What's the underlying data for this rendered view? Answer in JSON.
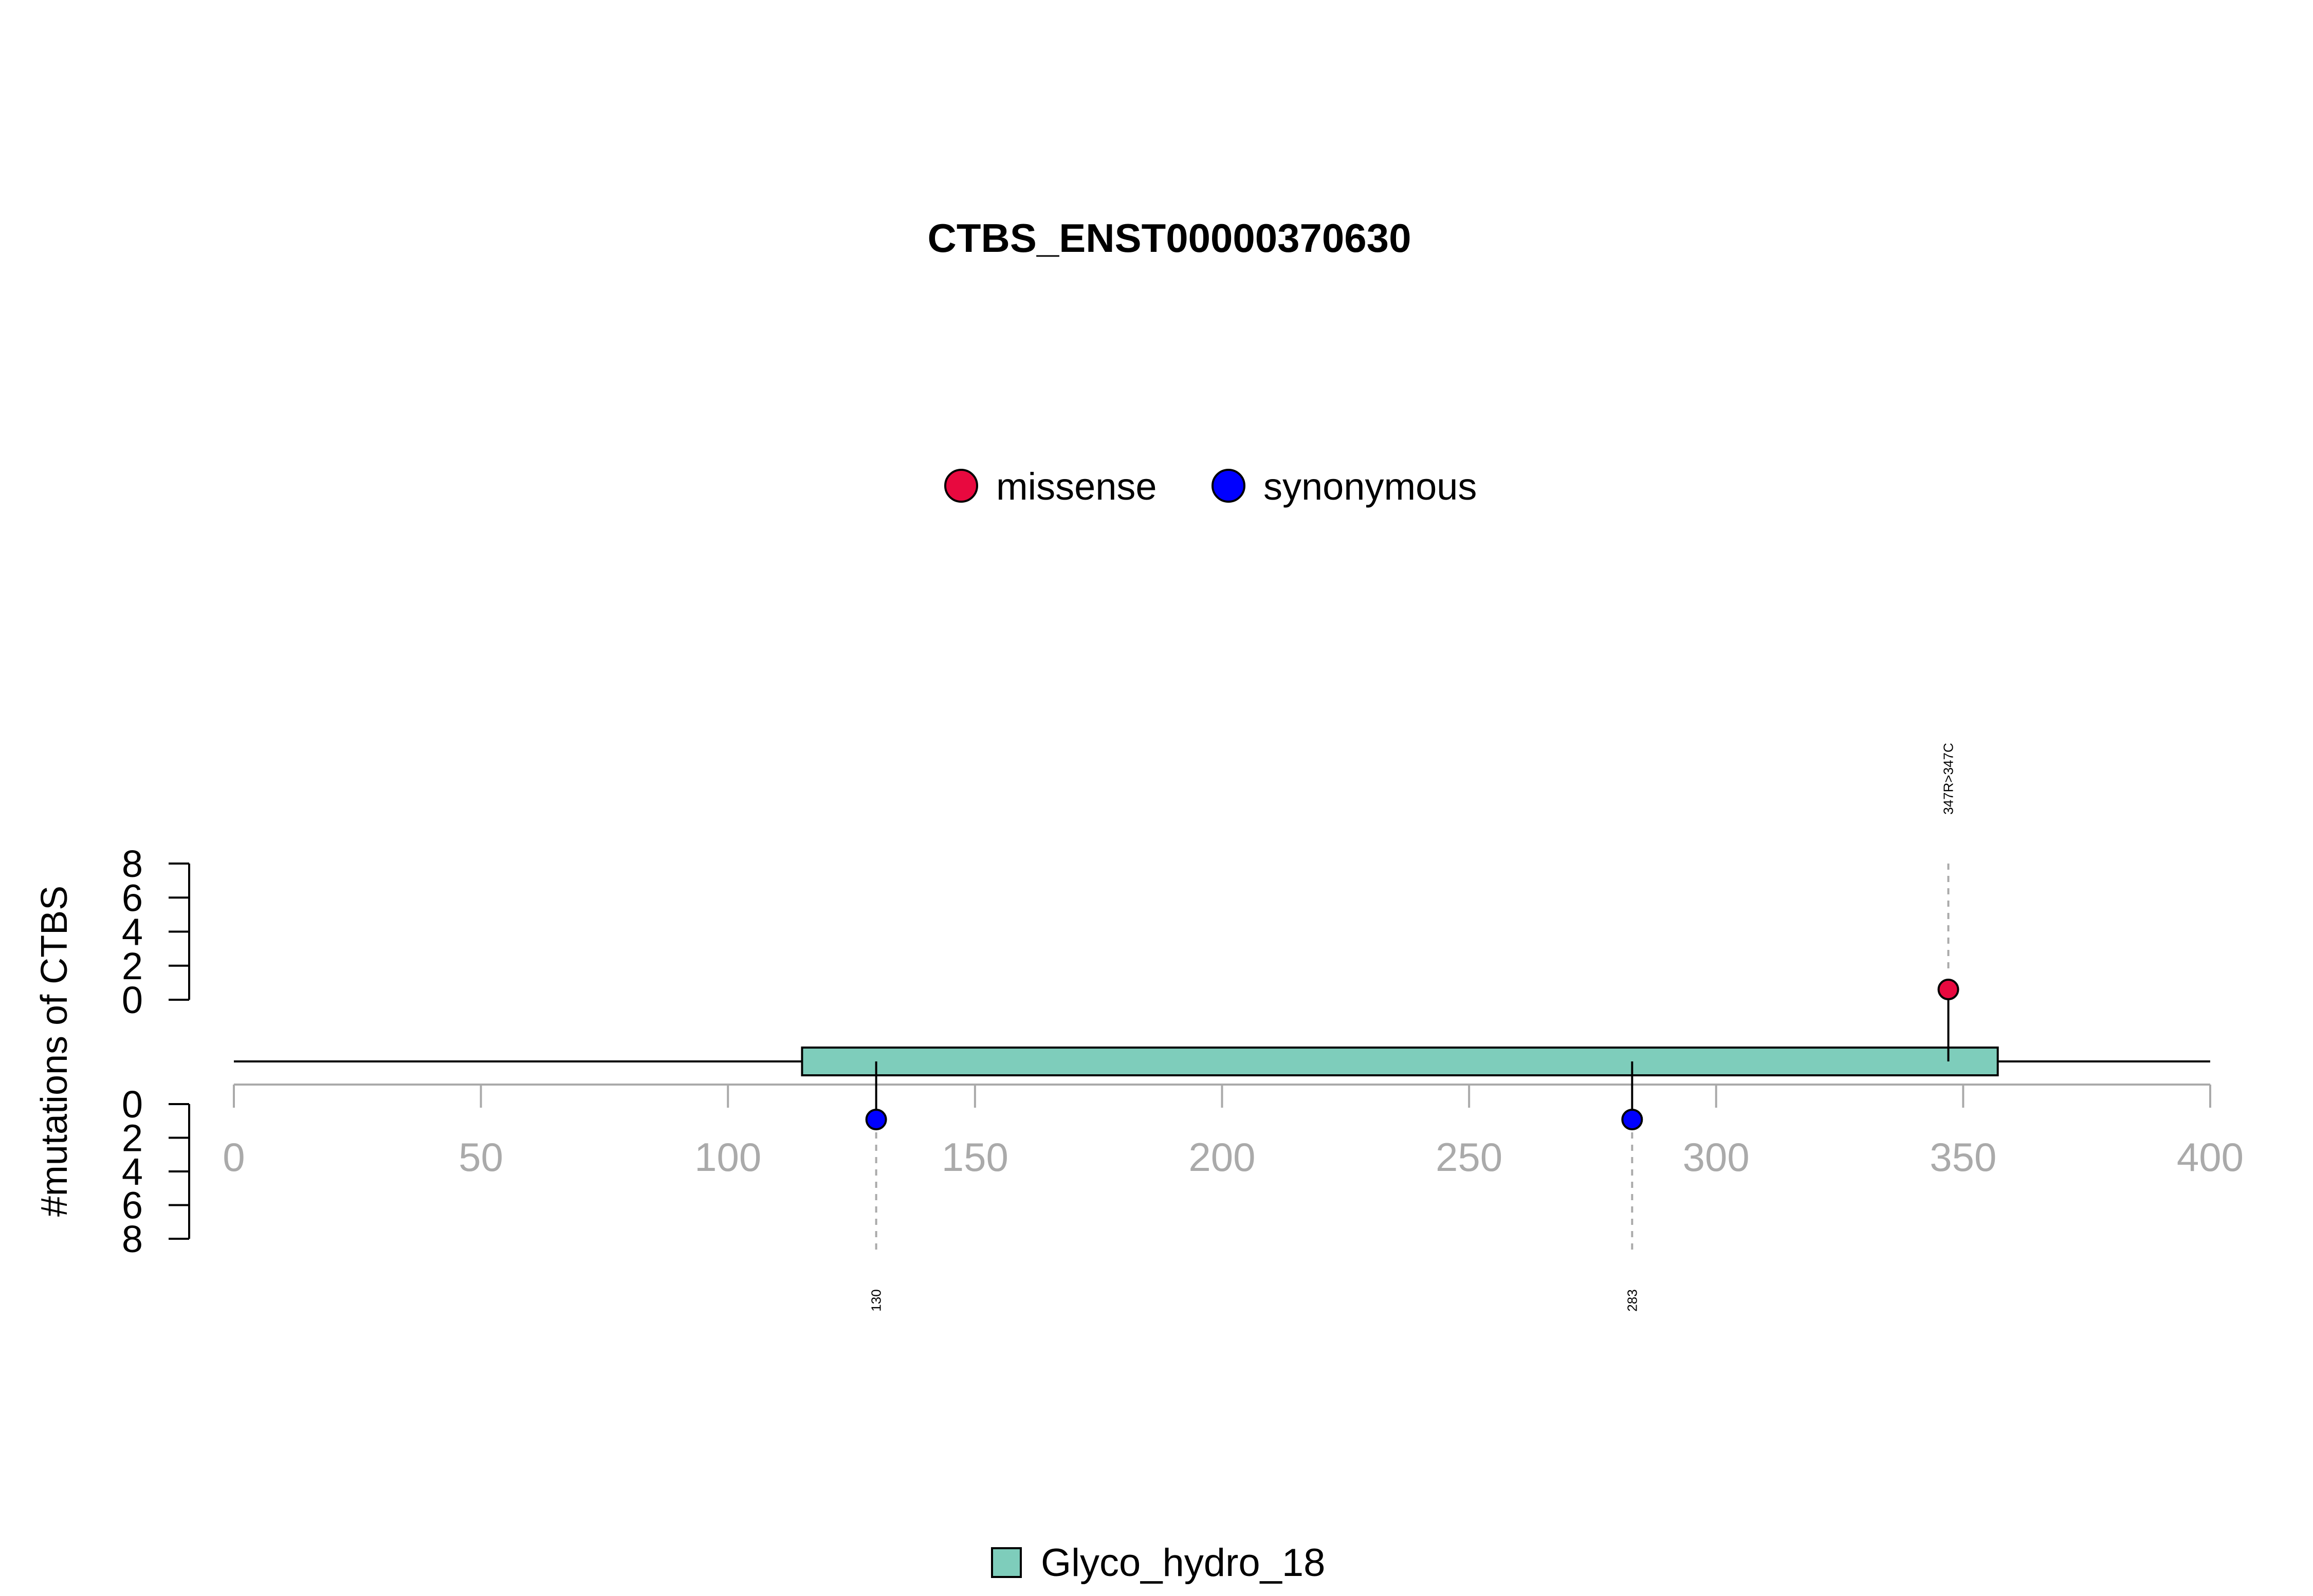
{
  "chart_data": {
    "type": "lollipop",
    "title": "CTBS_ENST00000370630",
    "ylabel": "#mutations of CTBS",
    "xlim": [
      0,
      400
    ],
    "x_ticks": [
      0,
      50,
      100,
      150,
      200,
      250,
      300,
      350,
      400
    ],
    "y_ticks_upper": [
      0,
      2,
      4,
      6,
      8
    ],
    "y_ticks_lower": [
      0,
      2,
      4,
      6,
      8
    ],
    "ylim": [
      0,
      8
    ],
    "protein_length": 400,
    "legend_top": [
      {
        "name": "missense",
        "color": "#E8093F"
      },
      {
        "name": "synonymous",
        "color": "#0000FF"
      }
    ],
    "domains": [
      {
        "name": "Glyco_hydro_18",
        "start": 115,
        "end": 357,
        "color": "#7ECDBB"
      }
    ],
    "mutations": [
      {
        "position": 347,
        "count": 1,
        "type": "missense",
        "label": "347R>347C",
        "side": "upper",
        "color": "#E8093F"
      },
      {
        "position": 130,
        "count": 1,
        "type": "synonymous",
        "label": "130",
        "side": "lower",
        "color": "#0000FF"
      },
      {
        "position": 283,
        "count": 1,
        "type": "synonymous",
        "label": "283",
        "side": "lower",
        "color": "#0000FF"
      }
    ],
    "axis_color": "#AAAAAA",
    "stem_color": "#000000"
  }
}
